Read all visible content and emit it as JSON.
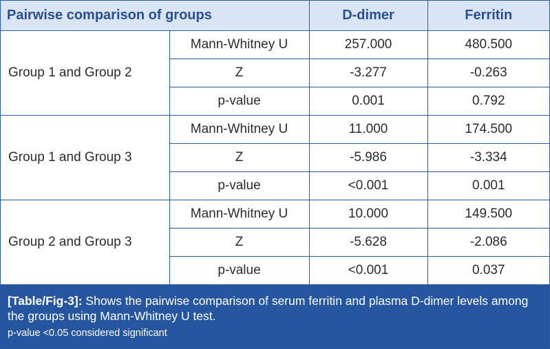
{
  "table": {
    "header": {
      "comparison": "Pairwise comparison of groups",
      "col1": "D-dimer",
      "col2": "Ferritin"
    },
    "groups": [
      {
        "name": "Group 1 and Group 2",
        "rows": [
          {
            "stat": "Mann-Whitney U",
            "d_dimer": "257.000",
            "ferritin": "480.500"
          },
          {
            "stat": "Z",
            "d_dimer": "-3.277",
            "ferritin": "-0.263"
          },
          {
            "stat": "p-value",
            "d_dimer": "0.001",
            "ferritin": "0.792"
          }
        ]
      },
      {
        "name": "Group 1 and Group 3",
        "rows": [
          {
            "stat": "Mann-Whitney U",
            "d_dimer": "11.000",
            "ferritin": "174.500"
          },
          {
            "stat": "Z",
            "d_dimer": "-5.986",
            "ferritin": "-3.334"
          },
          {
            "stat": "p-value",
            "d_dimer": "<0.001",
            "ferritin": "0.001"
          }
        ]
      },
      {
        "name": "Group 2 and Group 3",
        "rows": [
          {
            "stat": "Mann-Whitney U",
            "d_dimer": "10.000",
            "ferritin": "149.500"
          },
          {
            "stat": "Z",
            "d_dimer": "-5.628",
            "ferritin": "-2.086"
          },
          {
            "stat": "p-value",
            "d_dimer": "<0.001",
            "ferritin": "0.037"
          }
        ]
      }
    ]
  },
  "caption": {
    "label": "[Table/Fig-3]:",
    "text": " Shows the pairwise comparison of serum ferritin and plasma D-dimer levels among the groups using Mann-Whitney U test.",
    "note": "p-value <0.05 considered significant"
  },
  "colors": {
    "header_bg": "#d9e4f4",
    "header_text": "#2a4f8f",
    "border": "#2a5aa0",
    "caption_bg": "#2656a0"
  }
}
